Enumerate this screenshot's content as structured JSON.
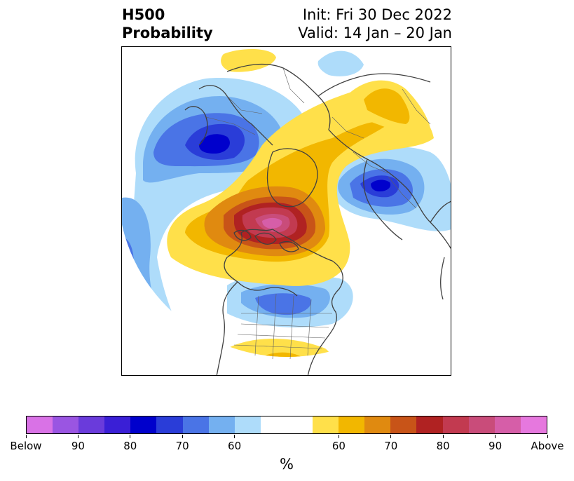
{
  "header": {
    "title_line1": "H500",
    "title_line2": "Probability",
    "init_label": "Init: Fri 30 Dec 2022",
    "valid_label": "Valid: 14 Jan – 20 Jan"
  },
  "colorbar": {
    "unit": "%",
    "tick_labels": [
      "Below",
      "90",
      "80",
      "70",
      "60",
      "60",
      "70",
      "80",
      "90",
      "Above"
    ],
    "below_colors": [
      "#d972e6",
      "#9a55e2",
      "#6a3bdb",
      "#3a1fd6",
      "#0000cc",
      "#2a3dd8",
      "#4a74e6",
      "#74b0f0",
      "#aedcfa"
    ],
    "neutral_color": "#ffffff",
    "above_colors": [
      "#ffe04a",
      "#f2b700",
      "#e08a10",
      "#c85418",
      "#b02222",
      "#c23a50",
      "#c94c7a",
      "#d65ea8",
      "#e678de"
    ]
  },
  "map": {
    "projection": "north-polar-stereographic",
    "features": [
      "coastlines",
      "country-borders",
      "us-state-borders"
    ]
  }
}
